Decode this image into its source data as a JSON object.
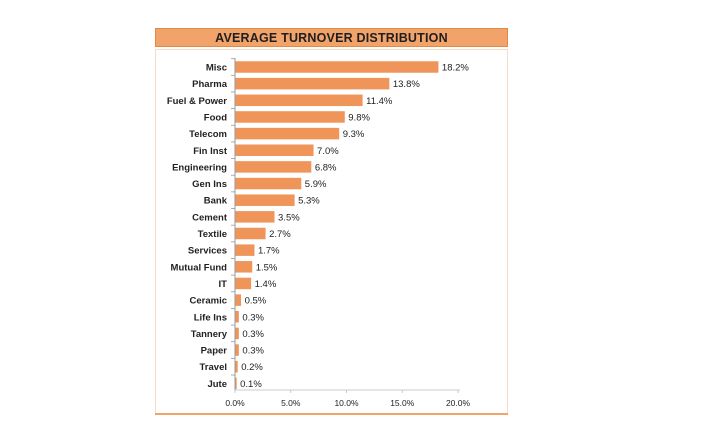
{
  "chart_data": {
    "type": "bar",
    "orientation": "horizontal",
    "title": "AVERAGE TURNOVER DISTRIBUTION",
    "categories": [
      "Misc",
      "Pharma",
      "Fuel & Power",
      "Food",
      "Telecom",
      "Fin Inst",
      "Engineering",
      "Gen Ins",
      "Bank",
      "Cement",
      "Textile",
      "Services",
      "Mutual Fund",
      "IT",
      "Ceramic",
      "Life Ins",
      "Tannery",
      "Paper",
      "Travel",
      "Jute"
    ],
    "values": [
      18.2,
      13.8,
      11.4,
      9.8,
      9.3,
      7.0,
      6.8,
      5.9,
      5.3,
      3.5,
      2.7,
      1.7,
      1.5,
      1.4,
      0.5,
      0.3,
      0.3,
      0.3,
      0.2,
      0.1
    ],
    "value_labels": [
      "18.2%",
      "13.8%",
      "11.4%",
      "9.8%",
      "9.3%",
      "7.0%",
      "6.8%",
      "5.9%",
      "5.3%",
      "3.5%",
      "2.7%",
      "1.7%",
      "1.5%",
      "1.4%",
      "0.5%",
      "0.3%",
      "0.3%",
      "0.3%",
      "0.2%",
      "0.1%"
    ],
    "xticks": [
      0,
      5,
      10,
      15,
      20
    ],
    "xtick_labels": [
      "0.0%",
      "5.0%",
      "10.0%",
      "15.0%",
      "20.0%"
    ],
    "xlim": [
      0,
      20
    ],
    "grid": false,
    "xlabel": "",
    "ylabel": "",
    "bar_color": "#f0955a",
    "title_band_color": "#f2a36a"
  }
}
